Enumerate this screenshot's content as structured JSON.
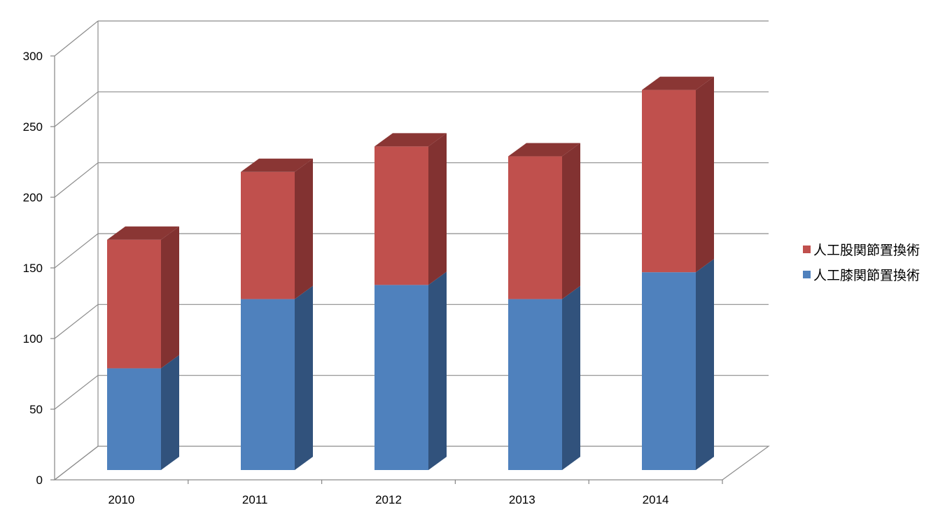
{
  "chart_data": {
    "type": "bar",
    "stacked": true,
    "three_d": true,
    "categories": [
      "2010",
      "2011",
      "2012",
      "2013",
      "2014"
    ],
    "series": [
      {
        "name": "人工膝関節置換術",
        "values": [
          72,
          121,
          131,
          121,
          140
        ],
        "color": "#4F81BD",
        "side_color": "#31527C"
      },
      {
        "name": "人工股関節置換術",
        "values": [
          91,
          90,
          98,
          101,
          129
        ],
        "color": "#C0504D",
        "side_color": "#823231",
        "top_color": "#8A3634"
      }
    ],
    "y_ticks": [
      "0",
      "50",
      "100",
      "150",
      "200",
      "250",
      "300"
    ],
    "ylim": [
      0,
      300
    ],
    "grid": true,
    "legend_position": "right",
    "legend_order": [
      "人工股関節置換術",
      "人工膝関節置換術"
    ]
  }
}
